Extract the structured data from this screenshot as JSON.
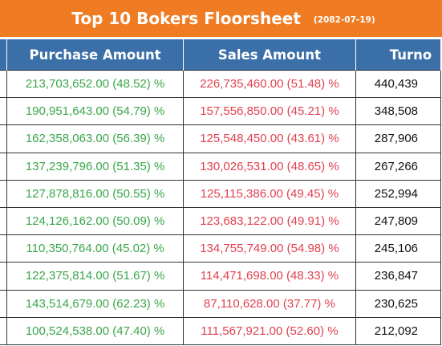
{
  "header": {
    "title": "Top 10 Bokers Floorsheet",
    "date": "(2082-07-19)"
  },
  "columns": {
    "purchase": "Purchase Amount",
    "sales": "Sales Amount",
    "turnover": "Turno"
  },
  "rows": [
    {
      "purchase": "213,703,652.00 (48.52) %",
      "sales": "226,735,460.00 (51.48) %",
      "turnover": "440,439"
    },
    {
      "purchase": "190,951,643.00 (54.79) %",
      "sales": "157,556,850.00 (45.21) %",
      "turnover": "348,508"
    },
    {
      "purchase": "162,358,063.00 (56.39) %",
      "sales": "125,548,450.00 (43.61) %",
      "turnover": "287,906"
    },
    {
      "purchase": "137,239,796.00 (51.35) %",
      "sales": "130,026,531.00 (48.65) %",
      "turnover": "267,266"
    },
    {
      "purchase": "127,878,816.00 (50.55) %",
      "sales": "125,115,386.00 (49.45) %",
      "turnover": "252,994"
    },
    {
      "purchase": "124,126,162.00 (50.09) %",
      "sales": "123,683,122.00 (49.91) %",
      "turnover": "247,809"
    },
    {
      "purchase": "110,350,764.00 (45.02) %",
      "sales": "134,755,749.00 (54.98) %",
      "turnover": "245,106"
    },
    {
      "purchase": "122,375,814.00 (51.67) %",
      "sales": "114,471,698.00 (48.33) %",
      "turnover": "236,847"
    },
    {
      "purchase": "143,514,679.00 (62.23) %",
      "sales": "87,110,628.00 (37.77) %",
      "turnover": "230,625"
    },
    {
      "purchase": "100,524,538.00 (47.40) %",
      "sales": "111,567,921.00 (52.60) %",
      "turnover": "212,092"
    }
  ],
  "colors": {
    "title_bg": "#ef7c23",
    "header_bg": "#3b6fa8",
    "purchase_text": "#3aa64a",
    "sales_text": "#e0414f"
  }
}
